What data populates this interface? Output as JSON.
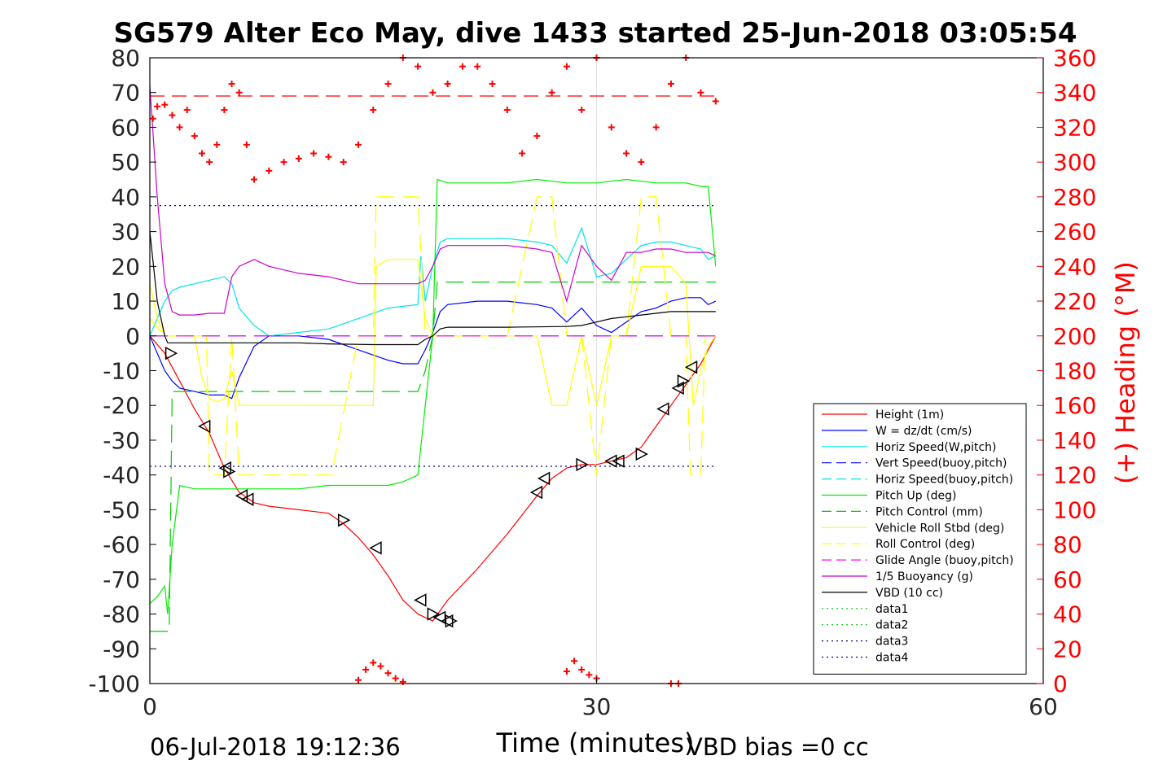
{
  "title": "SG579 Alter Eco May, dive 1433 started 25-Jun-2018 03:05:54",
  "footer_left": "06-Jul-2018 19:12:36",
  "footer_right": "VBD bias =0 cc",
  "chart_data": {
    "type": "line",
    "title": "SG579 Alter Eco May, dive 1433 started 25-Jun-2018 03:05:54",
    "xlabel": "Time (minutes)",
    "ylabel": "",
    "ylabel_right": "(+) Heading (°M)",
    "xlim": [
      0,
      60
    ],
    "ylim": [
      -100,
      80
    ],
    "ylim_right": [
      0,
      360
    ],
    "x_ticks": [
      0,
      30,
      60
    ],
    "y_ticks": [
      -100,
      -90,
      -80,
      -70,
      -60,
      -50,
      -40,
      -30,
      -20,
      -10,
      0,
      10,
      20,
      30,
      40,
      50,
      60,
      70,
      80
    ],
    "y_ticks_right": [
      0,
      20,
      40,
      60,
      80,
      100,
      120,
      140,
      160,
      180,
      200,
      220,
      240,
      260,
      280,
      300,
      320,
      340,
      360
    ],
    "grid": "x-only",
    "legend_position": "bottom-right",
    "colors": {
      "right_axis": "#ff0000"
    },
    "series": [
      {
        "name": "Height (1m)",
        "color": "#ff0000",
        "style": "solid",
        "x": [
          0,
          1,
          2,
          3,
          4,
          5,
          6,
          7,
          8,
          10,
          12,
          13,
          14,
          15,
          16,
          17,
          18,
          18.5,
          19,
          19.5,
          20,
          22,
          24,
          26,
          27,
          28,
          29,
          30,
          31,
          32,
          33,
          34,
          35,
          36,
          37,
          38
        ],
        "y": [
          0,
          -5,
          -13,
          -21,
          -28,
          -38,
          -45,
          -48,
          -49,
          -50,
          -51,
          -54,
          -58,
          -63,
          -69,
          -76,
          -80,
          -81,
          -82,
          -79,
          -76,
          -67,
          -57,
          -46,
          -41,
          -38,
          -37,
          -37,
          -36,
          -35,
          -32,
          -26,
          -20,
          -14,
          -8,
          0
        ]
      },
      {
        "name": "W = dz/dt (cm/s)",
        "color": "#0000ff",
        "style": "solid",
        "x": [
          0,
          0.5,
          1,
          1.5,
          2,
          3,
          4,
          5,
          5.5,
          6,
          7,
          8,
          9,
          10,
          12,
          14,
          16,
          17,
          18,
          18.5,
          19,
          19.5,
          20,
          22,
          24,
          26,
          27,
          28,
          29,
          30,
          31,
          32,
          33,
          34,
          35,
          36,
          37,
          37.5,
          38
        ],
        "y": [
          0,
          -5,
          -10,
          -13,
          -15,
          -16,
          -17,
          -17,
          -18,
          -12,
          -3,
          0,
          0,
          0,
          -1,
          -4,
          -7,
          -8,
          -8,
          -4,
          1,
          7,
          9,
          10,
          10,
          9,
          8,
          4,
          8,
          3,
          1,
          4,
          7,
          8,
          10,
          11,
          11,
          9,
          10
        ]
      },
      {
        "name": "Horiz Speed(W,pitch)",
        "color": "#00e5e5",
        "style": "solid",
        "x": [
          0,
          0.5,
          1,
          1.5,
          2,
          3,
          4,
          5,
          5.5,
          6,
          7,
          8,
          10,
          12,
          14,
          16,
          18,
          18.2,
          18.5,
          19,
          19.5,
          20,
          22,
          24,
          26,
          27,
          28,
          29,
          30,
          31,
          32,
          33,
          34,
          35,
          36,
          37,
          37.5,
          38
        ],
        "y": [
          0,
          5,
          10,
          13,
          14,
          15,
          16,
          17,
          15,
          8,
          3,
          0,
          1,
          2,
          5,
          8,
          9,
          23,
          10,
          20,
          27,
          28,
          28,
          28,
          27,
          26,
          21,
          31,
          17,
          18,
          22,
          26,
          27,
          27,
          26,
          25,
          22,
          23
        ]
      },
      {
        "name": "Vert Speed(buoy,pitch)",
        "color": "#0000ff",
        "style": "dashed",
        "x": [
          0,
          38
        ],
        "y": [
          0,
          0
        ]
      },
      {
        "name": "Horiz Speed(buoy,pitch)",
        "color": "#00e5e5",
        "style": "dashed",
        "x": [
          0,
          38
        ],
        "y": [
          0,
          0
        ]
      },
      {
        "name": "Pitch Up (deg)",
        "color": "#00ee00",
        "style": "solid",
        "x": [
          0,
          0.5,
          1,
          1.2,
          1.5,
          2,
          3,
          5,
          8,
          10,
          12,
          14,
          16,
          17,
          18,
          18.5,
          19,
          19.3,
          20,
          22,
          24,
          26,
          28,
          30,
          32,
          34,
          36,
          37,
          37.5,
          38
        ],
        "y": [
          -77,
          -75,
          -72,
          -80,
          -60,
          -43,
          -44,
          -44,
          -44,
          -44,
          -43,
          -43,
          -43,
          -42,
          -40,
          -20,
          0,
          45,
          44,
          44,
          44,
          45,
          44,
          44,
          45,
          44,
          44,
          43,
          43,
          20
        ]
      },
      {
        "name": "Pitch Control (mm)",
        "color": "#00cc00",
        "style": "dashed",
        "x": [
          0,
          1.3,
          1.5,
          12,
          12.1,
          18,
          18.5,
          19,
          19.3,
          38
        ],
        "y": [
          -85,
          -85,
          -16,
          -16,
          -16,
          -16,
          -10,
          0,
          15.5,
          15.5
        ]
      },
      {
        "name": "Vehicle Roll Stbd (deg)",
        "color": "#ffff00",
        "style": "solid",
        "x": [
          0,
          0.5,
          1,
          1.5,
          2,
          3,
          3.5,
          4,
          4.5,
          5,
          5.5,
          6,
          8,
          10,
          12,
          14,
          15,
          15.2,
          16,
          18,
          18.5,
          19,
          20,
          24,
          26,
          27,
          28,
          29,
          30,
          31,
          32,
          33,
          34,
          35,
          36,
          36.5,
          37,
          37.5,
          38
        ],
        "y": [
          15,
          5,
          0,
          0,
          0,
          0,
          -12,
          -18,
          -19,
          -18,
          -10,
          -20,
          -20,
          -20,
          -20,
          -20,
          -20,
          20,
          22,
          22,
          5,
          0,
          0,
          0,
          0,
          -20,
          -20,
          0,
          -20,
          0,
          0,
          20,
          20,
          20,
          15,
          -20,
          -10,
          -3,
          0
        ]
      },
      {
        "name": "Roll Control (deg)",
        "color": "#ffff00",
        "style": "dashed",
        "x": [
          0,
          1,
          1.5,
          2,
          3,
          3.8,
          4,
          5,
          5.5,
          6,
          12,
          12.2,
          14,
          15,
          15.2,
          18,
          18.5,
          19,
          24,
          26,
          27,
          28,
          29,
          30,
          31,
          32,
          33,
          34,
          35,
          36,
          36.3,
          37,
          37.3,
          38
        ],
        "y": [
          5,
          0,
          0,
          0,
          0,
          0,
          -40,
          -40,
          0,
          -40,
          -40,
          -40,
          0,
          0,
          40,
          40,
          0,
          0,
          0,
          40,
          40,
          0,
          0,
          -40,
          0,
          0,
          40,
          40,
          0,
          0,
          -40,
          -40,
          0,
          0
        ]
      },
      {
        "name": "Glide Angle (buoy,pitch)",
        "color": "#ff00ff",
        "style": "dashed",
        "x": [
          0,
          38
        ],
        "y": [
          0,
          0
        ]
      },
      {
        "name": "1/5 Buoyancy (g)",
        "color": "#cc00cc",
        "style": "solid",
        "x": [
          0,
          0.5,
          1,
          1.5,
          2,
          3,
          4,
          5,
          5.5,
          6,
          7,
          8,
          10,
          12,
          13,
          14,
          16,
          18,
          18.5,
          19,
          19.5,
          20,
          22,
          24,
          26,
          27,
          28,
          29,
          30,
          31,
          32,
          33,
          34,
          35,
          36,
          37,
          37.5,
          38
        ],
        "y": [
          72,
          40,
          15,
          7,
          6,
          6,
          6.5,
          6.5,
          17,
          20,
          22,
          20,
          18,
          17,
          16,
          15,
          15,
          15,
          16,
          20,
          25,
          26,
          26,
          26,
          25,
          24,
          10,
          26,
          20,
          16,
          24,
          24,
          25,
          25,
          24,
          24,
          24,
          23
        ]
      },
      {
        "name": "VBD (10 cc)",
        "color": "#000000",
        "style": "solid",
        "x": [
          0,
          0.5,
          1,
          1.2,
          1.5,
          5,
          10,
          12,
          15,
          18,
          18.5,
          19,
          19.5,
          20,
          24,
          28,
          29,
          30,
          31,
          32,
          33,
          34,
          35,
          36,
          37,
          38
        ],
        "y": [
          30,
          10,
          0,
          -2,
          -2,
          -2,
          -2,
          -2.3,
          -2.5,
          -2.5,
          -1,
          0,
          2,
          2.5,
          2.5,
          2.7,
          3,
          4,
          5,
          5.5,
          6,
          6.5,
          7,
          7,
          7,
          7
        ]
      },
      {
        "name": "data1",
        "color": "#00cc00",
        "style": "dotted",
        "x": [],
        "y": []
      },
      {
        "name": "data2",
        "color": "#00cc00",
        "style": "dotted",
        "x": [],
        "y": []
      },
      {
        "name": "data3",
        "color": "#00008b",
        "style": "dotted",
        "x": [
          0,
          38
        ],
        "y": [
          37.5,
          37.5
        ]
      },
      {
        "name": "data4",
        "color": "#00008b",
        "style": "dotted",
        "x": [
          0,
          38
        ],
        "y": [
          -37.5,
          -37.5
        ]
      }
    ],
    "heading_series": {
      "color": "#ff0000",
      "reference_heading": 338,
      "x": [
        0.2,
        0.5,
        1,
        1.5,
        2,
        2.5,
        3,
        3.5,
        4,
        4.5,
        5,
        5.5,
        6,
        6.5,
        7,
        8,
        9,
        10,
        11,
        12,
        13,
        14,
        15,
        16,
        17,
        18,
        19,
        20,
        21,
        22,
        23,
        24,
        25,
        26,
        27,
        28,
        29,
        30,
        31,
        32,
        33,
        34,
        35,
        36,
        37,
        38
      ],
      "y": [
        325,
        332,
        333,
        327,
        320,
        330,
        315,
        305,
        300,
        310,
        330,
        345,
        340,
        310,
        290,
        295,
        300,
        302,
        305,
        303,
        300,
        310,
        330,
        345,
        360,
        355,
        340,
        345,
        355,
        355,
        345,
        330,
        305,
        315,
        340,
        355,
        330,
        360,
        320,
        305,
        300,
        320,
        345,
        360,
        340,
        335
      ]
    },
    "heading_low_points": {
      "x": [
        14,
        14.5,
        15,
        15.5,
        16,
        16.5,
        17,
        28,
        28.5,
        29,
        29.5,
        30,
        35,
        35.5
      ],
      "y": [
        2,
        8,
        12,
        10,
        6,
        3,
        1,
        7,
        13,
        8,
        5,
        3,
        0,
        0
      ]
    },
    "markers": {
      "x": [
        1.4,
        3.7,
        5.1,
        5.3,
        6.2,
        6.6,
        13,
        15.2,
        18.2,
        19,
        19.5,
        20,
        20.2,
        26,
        26.5,
        29,
        31,
        31.5,
        33,
        34.5,
        35.5,
        35.8,
        36.4
      ],
      "y": [
        -5,
        -26,
        -38,
        -39,
        -46,
        -47,
        -53,
        -61,
        -76,
        -80,
        -81,
        -82,
        -82,
        -45,
        -41,
        -37,
        -36,
        -36,
        -34,
        -21,
        -15,
        -13,
        -9
      ]
    }
  }
}
